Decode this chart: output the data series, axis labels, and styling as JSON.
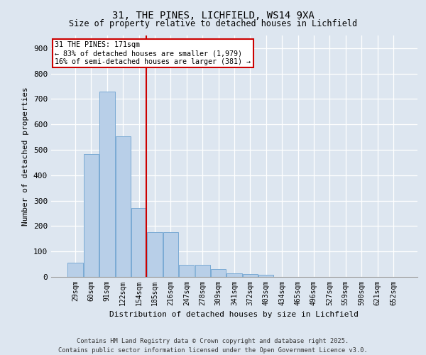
{
  "title1": "31, THE PINES, LICHFIELD, WS14 9XA",
  "title2": "Size of property relative to detached houses in Lichfield",
  "xlabel": "Distribution of detached houses by size in Lichfield",
  "ylabel": "Number of detached properties",
  "categories": [
    "29sqm",
    "60sqm",
    "91sqm",
    "122sqm",
    "154sqm",
    "185sqm",
    "216sqm",
    "247sqm",
    "278sqm",
    "309sqm",
    "341sqm",
    "372sqm",
    "403sqm",
    "434sqm",
    "465sqm",
    "496sqm",
    "527sqm",
    "559sqm",
    "590sqm",
    "621sqm",
    "652sqm"
  ],
  "values": [
    57,
    484,
    728,
    554,
    272,
    175,
    175,
    47,
    47,
    30,
    15,
    12,
    7,
    0,
    0,
    0,
    0,
    0,
    0,
    0,
    0
  ],
  "bar_color": "#b8cfe8",
  "bar_edge_color": "#7aaad4",
  "vline_x": 4,
  "vline_color": "#cc0000",
  "annotation_text": "31 THE PINES: 171sqm\n← 83% of detached houses are smaller (1,979)\n16% of semi-detached houses are larger (381) →",
  "annotation_box_color": "#ffffff",
  "annotation_box_edge": "#cc0000",
  "bg_color": "#dde6f0",
  "plot_bg": "#dde6f0",
  "footer": "Contains HM Land Registry data © Crown copyright and database right 2025.\nContains public sector information licensed under the Open Government Licence v3.0.",
  "ylim": [
    0,
    950
  ],
  "yticks": [
    0,
    100,
    200,
    300,
    400,
    500,
    600,
    700,
    800,
    900
  ]
}
